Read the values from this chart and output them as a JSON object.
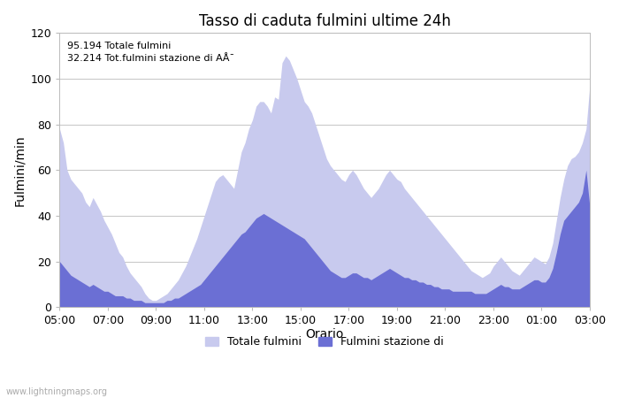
{
  "title": "Tasso di caduta fulmini ultime 24h",
  "xlabel": "Orario",
  "ylabel": "Fulmini/min",
  "ylim": [
    0,
    120
  ],
  "yticks": [
    0,
    20,
    40,
    60,
    80,
    100,
    120
  ],
  "xtick_labels": [
    "05:00",
    "07:00",
    "09:00",
    "11:00",
    "13:00",
    "15:00",
    "17:00",
    "19:00",
    "21:00",
    "23:00",
    "01:00",
    "03:00"
  ],
  "annotation_text": "95.194 Totale fulmini\n32.214 Tot.fulmini stazione di AÅ¯",
  "legend_labels": [
    "Totale fulmini",
    "Fulmini stazione di"
  ],
  "color_total": "#c8caee",
  "color_station": "#6b6fd4",
  "watermark": "www.lightningmaps.org",
  "total_values": [
    78,
    72,
    60,
    56,
    54,
    52,
    50,
    46,
    44,
    48,
    45,
    42,
    38,
    35,
    32,
    28,
    24,
    22,
    18,
    15,
    13,
    11,
    9,
    6,
    4,
    3,
    3,
    4,
    5,
    6,
    8,
    10,
    12,
    15,
    18,
    22,
    26,
    30,
    35,
    40,
    45,
    50,
    55,
    57,
    58,
    56,
    54,
    52,
    60,
    68,
    72,
    78,
    82,
    88,
    90,
    90,
    88,
    85,
    92,
    91,
    107,
    110,
    108,
    104,
    100,
    95,
    90,
    88,
    85,
    80,
    75,
    70,
    65,
    62,
    60,
    58,
    56,
    55,
    58,
    60,
    58,
    55,
    52,
    50,
    48,
    50,
    52,
    55,
    58,
    60,
    58,
    56,
    55,
    52,
    50,
    48,
    46,
    44,
    42,
    40,
    38,
    36,
    34,
    32,
    30,
    28,
    26,
    24,
    22,
    20,
    18,
    16,
    15,
    14,
    13,
    14,
    15,
    18,
    20,
    22,
    20,
    18,
    16,
    15,
    14,
    16,
    18,
    20,
    22,
    21,
    20,
    19,
    22,
    28,
    38,
    48,
    56,
    62,
    65,
    66,
    68,
    72,
    78,
    97
  ],
  "station_values": [
    20,
    18,
    16,
    14,
    13,
    12,
    11,
    10,
    9,
    10,
    9,
    8,
    7,
    7,
    6,
    5,
    5,
    5,
    4,
    4,
    3,
    3,
    3,
    2,
    2,
    2,
    2,
    2,
    2,
    3,
    3,
    4,
    4,
    5,
    6,
    7,
    8,
    9,
    10,
    12,
    14,
    16,
    18,
    20,
    22,
    24,
    26,
    28,
    30,
    32,
    33,
    35,
    37,
    39,
    40,
    41,
    40,
    39,
    38,
    37,
    36,
    35,
    34,
    33,
    32,
    31,
    30,
    28,
    26,
    24,
    22,
    20,
    18,
    16,
    15,
    14,
    13,
    13,
    14,
    15,
    15,
    14,
    13,
    13,
    12,
    13,
    14,
    15,
    16,
    17,
    16,
    15,
    14,
    13,
    13,
    12,
    12,
    11,
    11,
    10,
    10,
    9,
    9,
    8,
    8,
    8,
    7,
    7,
    7,
    7,
    7,
    7,
    6,
    6,
    6,
    6,
    7,
    8,
    9,
    10,
    9,
    9,
    8,
    8,
    8,
    9,
    10,
    11,
    12,
    12,
    11,
    11,
    13,
    17,
    24,
    32,
    38,
    40,
    42,
    44,
    46,
    50,
    60,
    44
  ],
  "figsize": [
    7.0,
    4.5
  ],
  "dpi": 100
}
